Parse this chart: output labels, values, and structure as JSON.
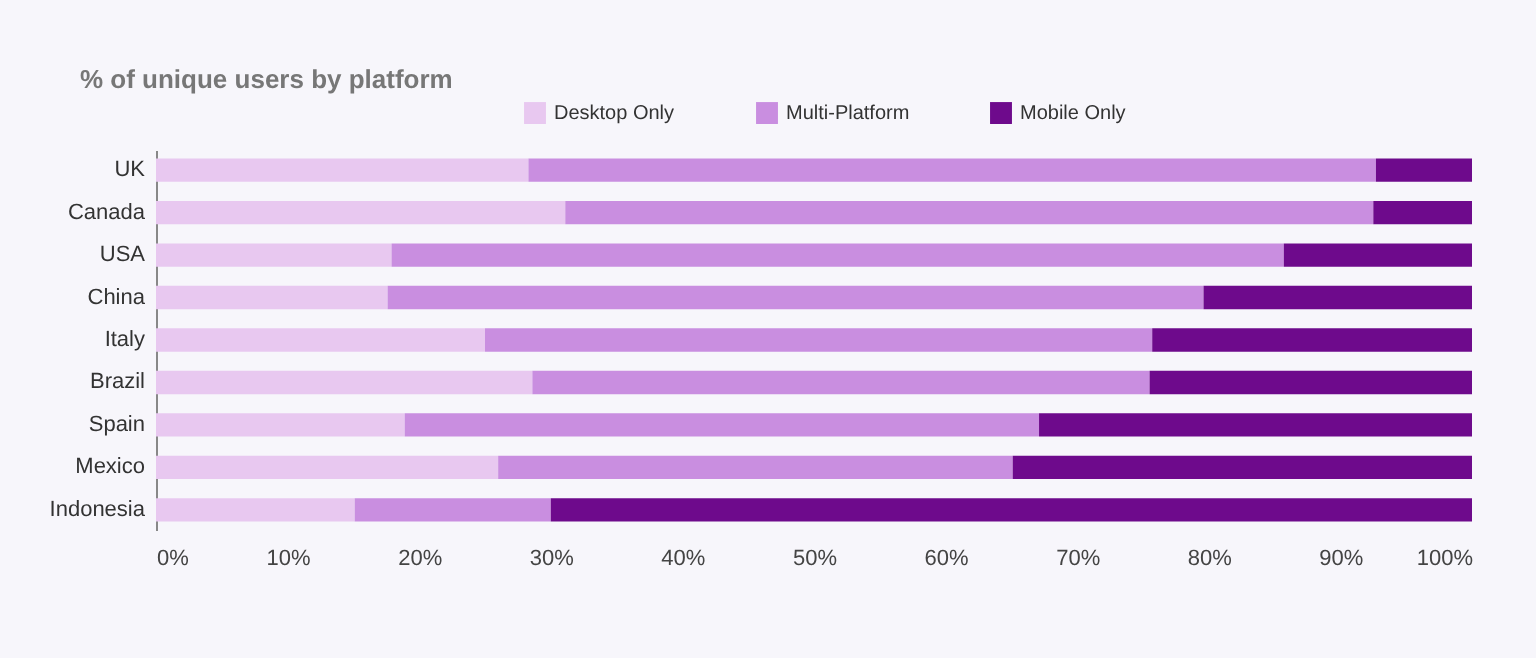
{
  "chart_data": {
    "type": "bar",
    "orientation": "horizontal",
    "stacked": true,
    "title": "% of unique users by platform",
    "categories": [
      "UK",
      "Canada",
      "USA",
      "China",
      "Italy",
      "Brazil",
      "Spain",
      "Mexico",
      "Indonesia"
    ],
    "series": [
      {
        "name": "Desktop Only",
        "color": "#e8c8f0",
        "values": [
          28.3,
          31.1,
          17.9,
          17.6,
          25.0,
          28.6,
          18.9,
          26.0,
          15.1
        ]
      },
      {
        "name": "Multi-Platform",
        "color": "#c98ee0",
        "values": [
          64.4,
          61.4,
          67.8,
          62.0,
          50.7,
          46.9,
          48.2,
          39.1,
          14.9
        ]
      },
      {
        "name": "Mobile Only",
        "color": "#6e0a8c",
        "values": [
          7.3,
          7.5,
          14.3,
          20.4,
          24.3,
          24.5,
          32.9,
          34.9,
          70.0
        ]
      }
    ],
    "xlim": [
      0,
      100
    ],
    "xticks": [
      {
        "value": 0,
        "label": "0%"
      },
      {
        "value": 10,
        "label": "10%"
      },
      {
        "value": 20,
        "label": "20%"
      },
      {
        "value": 30,
        "label": "30%"
      },
      {
        "value": 40,
        "label": "40%"
      },
      {
        "value": 50,
        "label": "50%"
      },
      {
        "value": 60,
        "label": "60%"
      },
      {
        "value": 70,
        "label": "70%"
      },
      {
        "value": 80,
        "label": "80%"
      },
      {
        "value": 90,
        "label": "90%"
      },
      {
        "value": 100,
        "label": "100%"
      }
    ],
    "grid": false,
    "legend": "top"
  }
}
